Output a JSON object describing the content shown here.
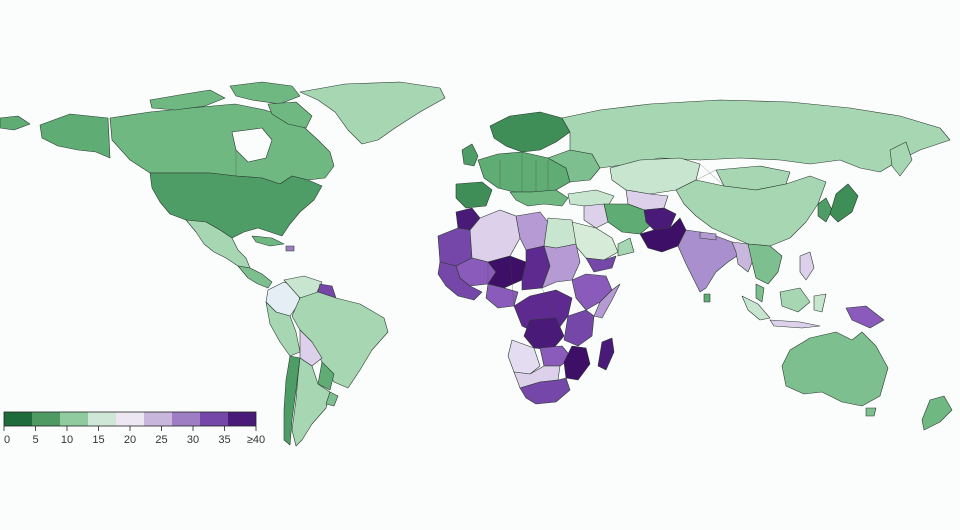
{
  "legend": {
    "ticks": [
      "0",
      "5",
      "10",
      "15",
      "20",
      "25",
      "30",
      "35",
      "≥40"
    ],
    "colors": [
      "#1f6b3c",
      "#4e9a62",
      "#8fcb9f",
      "#cfe7d6",
      "#ece7f3",
      "#c9b6dc",
      "#9f7dc4",
      "#7447a8",
      "#4a1a78"
    ]
  },
  "palette": {
    "green_dark": "#2f7d4a",
    "green_mid": "#5fac74",
    "green_light": "#8fcb9f",
    "green_pale": "#c7e5cf",
    "neutral": "#e9eef4",
    "purple_pale": "#dcd0ea",
    "purple_light": "#b59ad3",
    "purple_mid": "#8a5bbb",
    "purple_dark": "#5e2a90",
    "purple_deep": "#3d0f66",
    "ocean": "#fbfdfd"
  }
}
